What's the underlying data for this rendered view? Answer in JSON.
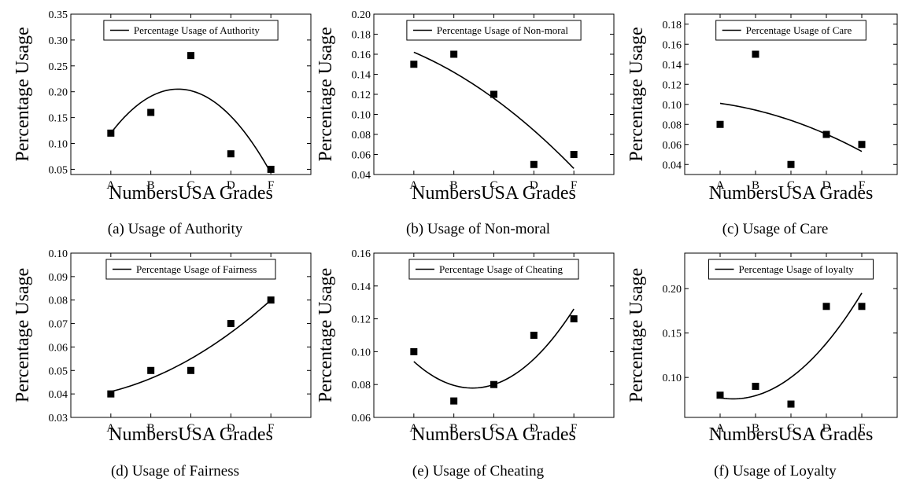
{
  "x_label": "NumbersUSA Grades",
  "y_label": "Percentage Usage",
  "chart_data": [
    {
      "type": "scatter",
      "caption": "(a) Usage of Authority",
      "legend": "Percentage Usage of Authority",
      "legend_placement": "top",
      "xlabel": "NumbersUSA Grades",
      "ylabel": "Percentage Usage",
      "categories": [
        "A",
        "B",
        "C",
        "D",
        "F"
      ],
      "values": [
        0.12,
        0.16,
        0.27,
        0.08,
        0.05
      ],
      "fit": [
        0.12,
        0.202,
        0.043
      ],
      "ylim": [
        0.04,
        0.35
      ],
      "yticks": [
        "0.05",
        "0.10",
        "0.15",
        "0.20",
        "0.25",
        "0.30",
        "0.35"
      ],
      "grid": false
    },
    {
      "type": "scatter",
      "caption": "(b) Usage of Non-moral",
      "legend": "Percentage Usage of Non-moral",
      "legend_placement": "top",
      "xlabel": "NumbersUSA Grades",
      "ylabel": "Percentage Usage",
      "categories": [
        "A",
        "B",
        "C",
        "D",
        "F"
      ],
      "values": [
        0.15,
        0.16,
        0.12,
        0.05,
        0.06
      ],
      "fit": [
        0.162,
        0.116,
        0.046
      ],
      "ylim": [
        0.04,
        0.2
      ],
      "yticks": [
        "0.04",
        "0.06",
        "0.08",
        "0.10",
        "0.12",
        "0.14",
        "0.16",
        "0.18",
        "0.20"
      ],
      "grid": false
    },
    {
      "type": "scatter",
      "caption": "(c) Usage of Care",
      "legend": "Percentage Usage of Care",
      "legend_placement": "top",
      "xlabel": "NumbersUSA Grades",
      "ylabel": "Percentage Usage",
      "categories": [
        "A",
        "B",
        "C",
        "D",
        "F"
      ],
      "values": [
        0.08,
        0.15,
        0.04,
        0.07,
        0.06
      ],
      "fit": [
        0.101,
        0.084,
        0.053
      ],
      "ylim": [
        0.03,
        0.19
      ],
      "yticks": [
        "0.04",
        "0.06",
        "0.08",
        "0.10",
        "0.12",
        "0.14",
        "0.16",
        "0.18"
      ],
      "grid": false
    },
    {
      "type": "scatter",
      "caption": "(d) Usage of Fairness",
      "legend": "Percentage Usage of Fairness",
      "legend_placement": "top",
      "xlabel": "NumbersUSA Grades",
      "ylabel": "Percentage Usage",
      "categories": [
        "A",
        "B",
        "C",
        "D",
        "F"
      ],
      "values": [
        0.04,
        0.05,
        0.05,
        0.07,
        0.08
      ],
      "fit": [
        0.041,
        0.055,
        0.08
      ],
      "ylim": [
        0.03,
        0.1
      ],
      "yticks": [
        "0.03",
        "0.04",
        "0.05",
        "0.06",
        "0.07",
        "0.08",
        "0.09",
        "0.10"
      ],
      "grid": false
    },
    {
      "type": "scatter",
      "caption": "(e) Usage of Cheating",
      "legend": "Percentage Usage of Cheating",
      "legend_placement": "top",
      "xlabel": "NumbersUSA Grades",
      "ylabel": "Percentage Usage",
      "categories": [
        "A",
        "B",
        "C",
        "D",
        "F"
      ],
      "values": [
        0.1,
        0.07,
        0.08,
        0.11,
        0.12
      ],
      "fit": [
        0.094,
        0.08,
        0.126
      ],
      "ylim": [
        0.06,
        0.16
      ],
      "yticks": [
        "0.06",
        "0.08",
        "0.10",
        "0.12",
        "0.14",
        "0.16"
      ],
      "grid": false
    },
    {
      "type": "scatter",
      "caption": "(f) Usage of Loyalty",
      "legend": "Percentage Usage of loyalty",
      "legend_placement": "top",
      "xlabel": "NumbersUSA Grades",
      "ylabel": "Percentage Usage",
      "categories": [
        "A",
        "B",
        "C",
        "D",
        "F"
      ],
      "values": [
        0.08,
        0.09,
        0.07,
        0.18,
        0.18
      ],
      "fit": [
        0.077,
        0.1,
        0.195
      ],
      "ylim": [
        0.055,
        0.24
      ],
      "yticks": [
        "0.10",
        "0.15",
        "0.20"
      ],
      "grid": false
    }
  ]
}
